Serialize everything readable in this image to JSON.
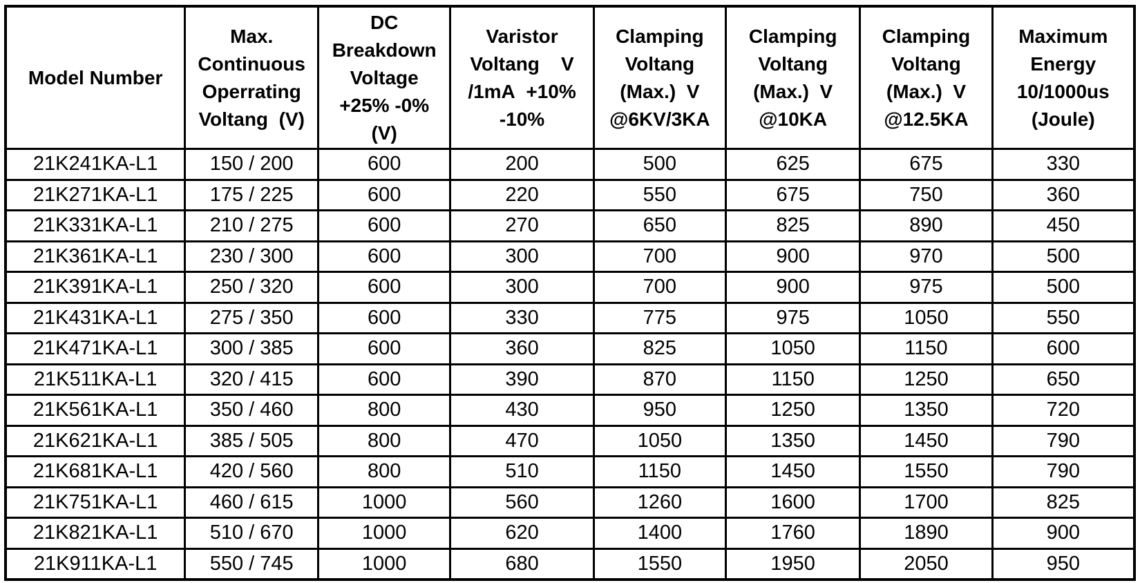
{
  "colors": {
    "text": "#000000",
    "background": "#ffffff",
    "border": "#000000"
  },
  "table": {
    "headers": [
      {
        "id": "model-number",
        "lines": [
          "Model Number"
        ]
      },
      {
        "id": "max-continuous",
        "lines": [
          "Max.",
          "Continuous",
          "Operrating",
          "Voltang  (V)"
        ]
      },
      {
        "id": "dc-breakdown",
        "lines": [
          "DC",
          "Breakdown",
          "Voltage",
          "+25% -0%",
          "(V)"
        ]
      },
      {
        "id": "varistor-voltage",
        "lines": [
          "Varistor",
          "Voltang    V",
          "/1mA  +10%",
          "-10%"
        ]
      },
      {
        "id": "clamping-6kv-3ka",
        "lines": [
          "Clamping",
          "Voltang",
          "(Max.)  V",
          "@6KV/3KA"
        ]
      },
      {
        "id": "clamping-10ka",
        "lines": [
          "Clamping",
          "Voltang",
          "(Max.)  V",
          "@10KA"
        ]
      },
      {
        "id": "clamping-12-5ka",
        "lines": [
          "Clamping",
          "Voltang",
          "(Max.)  V",
          "@12.5KA"
        ]
      },
      {
        "id": "maximum-energy",
        "lines": [
          "Maximum",
          "Energy",
          "10/1000us",
          "(Joule)"
        ]
      }
    ],
    "rows": [
      [
        "21K241KA-L1",
        "150 / 200",
        "600",
        "200",
        "500",
        "625",
        "675",
        "330"
      ],
      [
        "21K271KA-L1",
        "175 / 225",
        "600",
        "220",
        "550",
        "675",
        "750",
        "360"
      ],
      [
        "21K331KA-L1",
        "210 / 275",
        "600",
        "270",
        "650",
        "825",
        "890",
        "450"
      ],
      [
        "21K361KA-L1",
        "230 / 300",
        "600",
        "300",
        "700",
        "900",
        "970",
        "500"
      ],
      [
        "21K391KA-L1",
        "250 / 320",
        "600",
        "300",
        "700",
        "900",
        "975",
        "500"
      ],
      [
        "21K431KA-L1",
        "275 / 350",
        "600",
        "330",
        "775",
        "975",
        "1050",
        "550"
      ],
      [
        "21K471KA-L1",
        "300 / 385",
        "600",
        "360",
        "825",
        "1050",
        "1150",
        "600"
      ],
      [
        "21K511KA-L1",
        "320 / 415",
        "600",
        "390",
        "870",
        "1150",
        "1250",
        "650"
      ],
      [
        "21K561KA-L1",
        "350 / 460",
        "800",
        "430",
        "950",
        "1250",
        "1350",
        "720"
      ],
      [
        "21K621KA-L1",
        "385 / 505",
        "800",
        "470",
        "1050",
        "1350",
        "1450",
        "790"
      ],
      [
        "21K681KA-L1",
        "420 / 560",
        "800",
        "510",
        "1150",
        "1450",
        "1550",
        "790"
      ],
      [
        "21K751KA-L1",
        "460 / 615",
        "1000",
        "560",
        "1260",
        "1600",
        "1700",
        "825"
      ],
      [
        "21K821KA-L1",
        "510 / 670",
        "1000",
        "620",
        "1400",
        "1760",
        "1890",
        "900"
      ],
      [
        "21K911KA-L1",
        "550 / 745",
        "1000",
        "680",
        "1550",
        "1950",
        "2050",
        "950"
      ]
    ]
  }
}
